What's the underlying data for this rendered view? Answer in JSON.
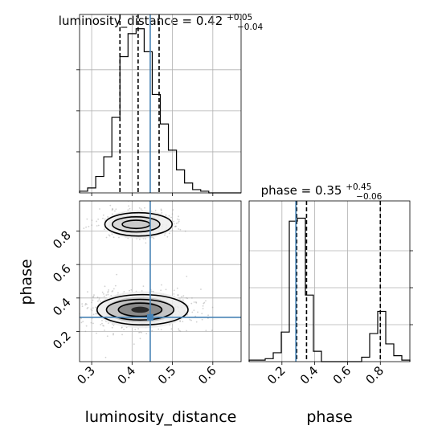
{
  "chart_data": {
    "type": "corner",
    "truth_color": "#4682b4",
    "grid": true,
    "panels": [
      {
        "id": "luminosity_distance_hist",
        "type": "step-histogram",
        "title": {
          "main": "luminosity_distance = 0.42",
          "sup": "+0.05",
          "sub": "−0.04"
        },
        "xlim": [
          0.27,
          0.67
        ],
        "ylim": [
          0,
          1
        ],
        "bin_edges": [
          0.27,
          0.29,
          0.31,
          0.33,
          0.35,
          0.37,
          0.39,
          0.41,
          0.43,
          0.45,
          0.47,
          0.49,
          0.51,
          0.53,
          0.55,
          0.57,
          0.59,
          0.61,
          0.63,
          0.65,
          0.67
        ],
        "counts": [
          0.01,
          0.03,
          0.1,
          0.22,
          0.46,
          0.83,
          0.97,
          1.0,
          0.86,
          0.6,
          0.42,
          0.26,
          0.14,
          0.06,
          0.02,
          0.01,
          0.0,
          0.0,
          0.0,
          0.0
        ],
        "quantiles": [
          0.37,
          0.415,
          0.467
        ],
        "truth": 0.445,
        "y_gridlines": [
          0.25,
          0.5,
          0.75
        ]
      },
      {
        "id": "joint",
        "type": "2d-density-contour",
        "xlim": [
          0.27,
          0.67
        ],
        "ylim": [
          0.02,
          0.98
        ],
        "x_ticks": [
          0.3,
          0.4,
          0.5,
          0.6
        ],
        "x_tick_labels": [
          "0.3",
          "0.4",
          "0.5",
          "0.6"
        ],
        "y_ticks": [
          0.2,
          0.4,
          0.6,
          0.8
        ],
        "y_tick_labels": [
          "0.2",
          "0.4",
          "0.6",
          "0.8"
        ],
        "xlabel": "luminosity_distance",
        "ylabel": "phase",
        "truth": {
          "x": 0.445,
          "y": 0.285
        },
        "modes": [
          {
            "cx": 0.42,
            "cy": 0.33,
            "levels": [
              {
                "rx": 0.115,
                "ry": 0.11,
                "fill": "#ececec"
              },
              {
                "rx": 0.085,
                "ry": 0.075,
                "fill": "#bdbdbd"
              },
              {
                "rx": 0.055,
                "ry": 0.048,
                "fill": "#7f7f7f"
              },
              {
                "rx": 0.022,
                "ry": 0.018,
                "fill": "#1a1a1a"
              }
            ]
          },
          {
            "cx": 0.41,
            "cy": 0.84,
            "levels": [
              {
                "rx": 0.085,
                "ry": 0.085,
                "fill": "#ededed"
              },
              {
                "rx": 0.06,
                "ry": 0.055,
                "fill": "#d5d5d5"
              },
              {
                "rx": 0.035,
                "ry": 0.03,
                "fill": "#c8c8c8"
              }
            ]
          }
        ]
      },
      {
        "id": "phase_hist",
        "type": "step-histogram",
        "title": {
          "main": "phase = 0.35",
          "sup": "+0.45",
          "sub": "−0.06"
        },
        "xlim": [
          0.0,
          0.98
        ],
        "ylim": [
          0,
          1
        ],
        "x_ticks": [
          0.2,
          0.4,
          0.6,
          0.8
        ],
        "x_tick_labels": [
          "0.2",
          "0.4",
          "0.6",
          "0.8"
        ],
        "xlabel": "phase",
        "bin_edges": [
          0.0,
          0.049,
          0.098,
          0.147,
          0.196,
          0.245,
          0.294,
          0.343,
          0.392,
          0.441,
          0.49,
          0.539,
          0.588,
          0.637,
          0.686,
          0.735,
          0.784,
          0.833,
          0.882,
          0.931,
          0.98
        ],
        "counts": [
          0.01,
          0.01,
          0.02,
          0.06,
          0.2,
          0.95,
          0.97,
          0.45,
          0.07,
          0.0,
          0.0,
          0.0,
          0.0,
          0.0,
          0.03,
          0.19,
          0.34,
          0.12,
          0.04,
          0.01
        ],
        "quantiles": [
          0.29,
          0.35,
          0.8
        ],
        "truth": 0.285,
        "y_gridlines": [
          0.25,
          0.5,
          0.75
        ]
      }
    ]
  }
}
